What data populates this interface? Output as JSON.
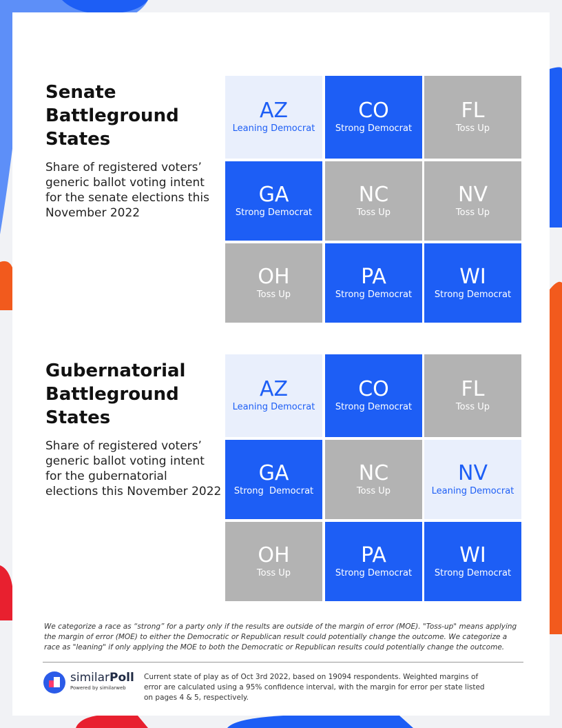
{
  "sections": [
    {
      "title": "Senate Battleground States",
      "description": "Share of registered voters’ generic ballot voting intent for the senate elections this November 2022",
      "cells": [
        {
          "state": "AZ",
          "rating": "Leaning Democrat",
          "color": "#e9effc"
        },
        {
          "state": "CO",
          "rating": "Strong Democrat",
          "color": "#1d5ef5"
        },
        {
          "state": "FL",
          "rating": "Toss Up",
          "color": "#b3b3b3"
        },
        {
          "state": "GA",
          "rating": "Strong Democrat",
          "color": "#1d5ef5"
        },
        {
          "state": "NC",
          "rating": "Toss Up",
          "color": "#b3b3b3"
        },
        {
          "state": "NV",
          "rating": "Toss Up",
          "color": "#b3b3b3"
        },
        {
          "state": "OH",
          "rating": "Toss Up",
          "color": "#b3b3b3"
        },
        {
          "state": "PA",
          "rating": "Strong Democrat",
          "color": "#1d5ef5"
        },
        {
          "state": "WI",
          "rating": "Strong Democrat",
          "color": "#1d5ef5"
        }
      ]
    },
    {
      "title": "Gubernatorial Battleground States",
      "description": "Share of registered voters’ generic ballot voting intent for the gubernatorial elections this November 2022",
      "cells": [
        {
          "state": "AZ",
          "rating": "Leaning Democrat",
          "color": "#e9effc"
        },
        {
          "state": "CO",
          "rating": "Strong Democrat",
          "color": "#1d5ef5"
        },
        {
          "state": "FL",
          "rating": "Toss Up",
          "color": "#b3b3b3"
        },
        {
          "state": "GA",
          "rating": "Strong  Democrat",
          "color": "#1d5ef5"
        },
        {
          "state": "NC",
          "rating": "Toss Up",
          "color": "#b3b3b3"
        },
        {
          "state": "NV",
          "rating": "Leaning Democrat",
          "color": "#e9effc"
        },
        {
          "state": "OH",
          "rating": "Toss Up",
          "color": "#b3b3b3"
        },
        {
          "state": "PA",
          "rating": "Strong Democrat",
          "color": "#1d5ef5"
        },
        {
          "state": "WI",
          "rating": "Strong Democrat",
          "color": "#1d5ef5"
        }
      ]
    }
  ],
  "footnote": "We categorize a race as “strong” for a party only if the results are outside of the margin of error (MOE). \"Toss-up\" means applying the margin of error (MOE) to either the Democratic or Republican result could potentially change the outcome. We categorize a race as \"leaning\" if only applying the MOE to both the Democratic or Republican results could potentially change the outcome.",
  "logo": {
    "name_plain": "similar",
    "name_bold": "Poll",
    "powered": "Powered by similarweb"
  },
  "footer_text": "Current state of play as of Oct 3rd 2022, based on 19094  respondents. Weighted margins of error are calculated using a 95% confidence interval, with the margin for error per state listed on pages 4 & 5, respectively."
}
